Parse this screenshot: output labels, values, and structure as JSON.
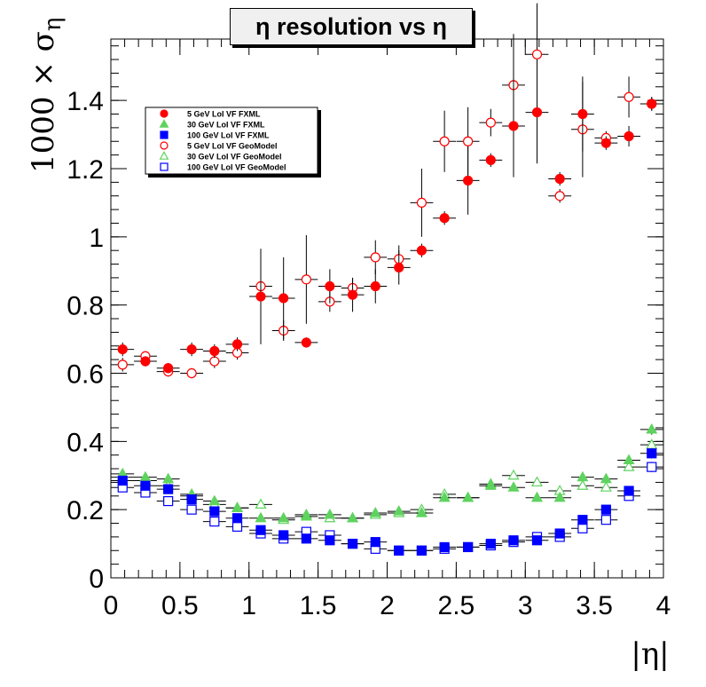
{
  "chart_data": {
    "type": "scatter",
    "title": "η resolution vs η",
    "xlabel": "|η|",
    "ylabel": "1000 × σ",
    "ylabel_subscript": "η",
    "xlim": [
      0,
      4
    ],
    "ylim": [
      0,
      1.58
    ],
    "xticks": [
      "0",
      "0.5",
      "1",
      "1.5",
      "2",
      "2.5",
      "3",
      "3.5",
      "4"
    ],
    "yticks": [
      "0",
      "0.2",
      "0.4",
      "0.6",
      "0.8",
      "1",
      "1.2",
      "1.4"
    ],
    "x": [
      0.085,
      0.25,
      0.415,
      0.585,
      0.75,
      0.915,
      1.085,
      1.25,
      1.415,
      1.585,
      1.75,
      1.915,
      2.085,
      2.25,
      2.415,
      2.585,
      2.75,
      2.915,
      3.085,
      3.25,
      3.415,
      3.585,
      3.75,
      3.915
    ],
    "xerr": 0.083,
    "grid": false,
    "legend_position": "top-left",
    "colors": {
      "red": "#ff0000",
      "green": "#5fd35f",
      "blue": "#0000ff"
    },
    "series": [
      {
        "name": "5 GeV LoI VF FXML",
        "marker": "filled-circle",
        "color": "#ff0000",
        "values": [
          0.67,
          0.635,
          0.615,
          0.67,
          0.665,
          0.685,
          0.825,
          0.82,
          0.69,
          0.855,
          0.83,
          0.855,
          0.91,
          0.96,
          1.055,
          1.165,
          1.225,
          1.325,
          1.365,
          1.17,
          1.36,
          1.275,
          1.295,
          1.39
        ],
        "errors": [
          0.02,
          0.015,
          0.015,
          0.02,
          0.02,
          0.02,
          0.14,
          0.12,
          0.015,
          0.05,
          0.05,
          0.05,
          0.05,
          0.02,
          0.02,
          0.1,
          0.02,
          0.15,
          0.15,
          0.02,
          0.11,
          0.02,
          0.03,
          0.02
        ]
      },
      {
        "name": "30 GeV LoI VF FXML",
        "marker": "filled-triangle",
        "color": "#5fd35f",
        "values": [
          0.305,
          0.295,
          0.29,
          0.245,
          0.225,
          0.205,
          0.175,
          0.175,
          0.18,
          0.185,
          0.175,
          0.19,
          0.195,
          0.19,
          0.235,
          0.235,
          0.27,
          0.265,
          0.235,
          0.235,
          0.295,
          0.29,
          0.345,
          0.435
        ],
        "errors": [
          0.01,
          0.01,
          0.01,
          0.01,
          0.01,
          0.01,
          0.01,
          0.01,
          0.01,
          0.01,
          0.01,
          0.01,
          0.01,
          0.01,
          0.01,
          0.01,
          0.01,
          0.01,
          0.01,
          0.01,
          0.01,
          0.01,
          0.01,
          0.015
        ]
      },
      {
        "name": "100 GeV LoI VF FXML",
        "marker": "filled-square",
        "color": "#0000ff",
        "values": [
          0.285,
          0.27,
          0.26,
          0.23,
          0.195,
          0.175,
          0.14,
          0.125,
          0.115,
          0.11,
          0.1,
          0.105,
          0.08,
          0.08,
          0.09,
          0.09,
          0.1,
          0.11,
          0.11,
          0.13,
          0.17,
          0.2,
          0.255,
          0.365
        ],
        "errors": [
          0.01,
          0.01,
          0.01,
          0.01,
          0.01,
          0.01,
          0.01,
          0.01,
          0.005,
          0.005,
          0.005,
          0.005,
          0.005,
          0.005,
          0.005,
          0.005,
          0.005,
          0.005,
          0.005,
          0.005,
          0.01,
          0.01,
          0.01,
          0.015
        ]
      },
      {
        "name": "5 GeV LoI VF GeoModel",
        "marker": "open-circle",
        "color": "#ff0000",
        "values": [
          0.625,
          0.65,
          0.605,
          0.6,
          0.635,
          0.66,
          0.855,
          0.725,
          0.875,
          0.81,
          0.85,
          0.94,
          0.935,
          1.1,
          1.28,
          1.28,
          1.335,
          1.445,
          1.535,
          1.12,
          1.315,
          1.29,
          1.41,
          1.39
        ],
        "errors": [
          0.02,
          0.015,
          0.015,
          0.015,
          0.02,
          0.02,
          0.05,
          0.03,
          0.13,
          0.03,
          0.03,
          0.05,
          0.04,
          0.1,
          0.09,
          0.1,
          0.04,
          0.15,
          0.15,
          0.02,
          0.14,
          0.02,
          0.06,
          0.02
        ]
      },
      {
        "name": "30 GeV LoI VF GeoModel",
        "marker": "open-triangle",
        "color": "#5fd35f",
        "values": [
          0.295,
          0.285,
          0.27,
          0.24,
          0.215,
          0.205,
          0.215,
          0.17,
          0.185,
          0.175,
          0.175,
          0.185,
          0.19,
          0.2,
          0.245,
          0.235,
          0.275,
          0.3,
          0.28,
          0.255,
          0.27,
          0.265,
          0.325,
          0.39
        ],
        "errors": [
          0.01,
          0.01,
          0.01,
          0.01,
          0.01,
          0.01,
          0.01,
          0.01,
          0.01,
          0.01,
          0.01,
          0.01,
          0.01,
          0.01,
          0.01,
          0.01,
          0.01,
          0.01,
          0.01,
          0.01,
          0.01,
          0.01,
          0.01,
          0.015
        ]
      },
      {
        "name": "100 GeV LoI VF GeoModel",
        "marker": "open-square",
        "color": "#0000ff",
        "values": [
          0.265,
          0.25,
          0.225,
          0.2,
          0.165,
          0.15,
          0.13,
          0.115,
          0.135,
          0.125,
          0.1,
          0.085,
          0.08,
          0.08,
          0.085,
          0.09,
          0.095,
          0.105,
          0.12,
          0.12,
          0.145,
          0.17,
          0.24,
          0.325
        ],
        "errors": [
          0.01,
          0.01,
          0.01,
          0.01,
          0.01,
          0.01,
          0.01,
          0.01,
          0.005,
          0.005,
          0.005,
          0.005,
          0.005,
          0.005,
          0.005,
          0.005,
          0.005,
          0.005,
          0.005,
          0.005,
          0.01,
          0.01,
          0.01,
          0.015
        ]
      }
    ]
  }
}
